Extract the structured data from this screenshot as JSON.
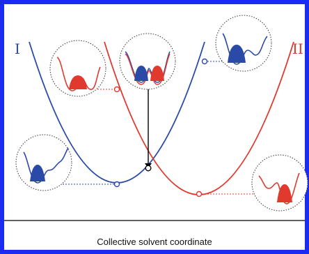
{
  "curve_labels": {
    "left": "I",
    "right": "II"
  },
  "axis": {
    "xlabel": "Collective solvent coordinate"
  },
  "colors": {
    "frame": "#1a2cf0",
    "state_I": "#2b4aa8",
    "state_II": "#e0392e",
    "crossing_arrow": "#000000"
  }
}
